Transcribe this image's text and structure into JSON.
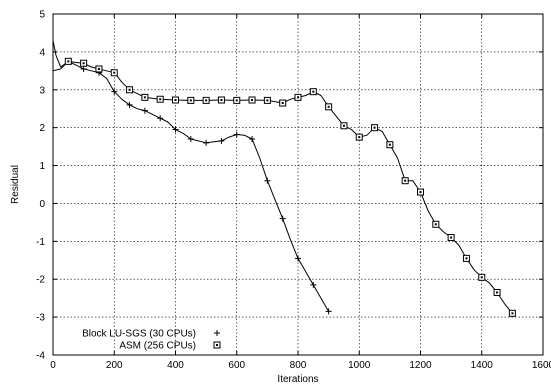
{
  "chart_data": {
    "type": "line",
    "title": "",
    "xlabel": "Iterations",
    "ylabel": "Residual",
    "xlim": [
      0,
      1600
    ],
    "ylim": [
      -4,
      5
    ],
    "xticks": [
      "0",
      "200",
      "400",
      "600",
      "800",
      "1000",
      "1200",
      "1400",
      "1600"
    ],
    "yticks": [
      "-4",
      "-3",
      "-2",
      "-1",
      "0",
      "1",
      "2",
      "3",
      "4",
      "5"
    ],
    "grid": true,
    "legend_position": "bottom-left",
    "series": [
      {
        "name": "Block LU-SGS (30 CPUs)",
        "marker": "plus",
        "line": [
          [
            0,
            4.3
          ],
          [
            10,
            3.9
          ],
          [
            25,
            3.6
          ],
          [
            50,
            3.75
          ],
          [
            75,
            3.65
          ],
          [
            100,
            3.55
          ],
          [
            125,
            3.5
          ],
          [
            150,
            3.45
          ],
          [
            175,
            3.3
          ],
          [
            200,
            2.95
          ],
          [
            225,
            2.75
          ],
          [
            250,
            2.6
          ],
          [
            275,
            2.5
          ],
          [
            300,
            2.45
          ],
          [
            325,
            2.35
          ],
          [
            350,
            2.25
          ],
          [
            375,
            2.15
          ],
          [
            400,
            1.95
          ],
          [
            425,
            1.85
          ],
          [
            450,
            1.7
          ],
          [
            500,
            1.6
          ],
          [
            550,
            1.65
          ],
          [
            575,
            1.75
          ],
          [
            600,
            1.82
          ],
          [
            625,
            1.8
          ],
          [
            650,
            1.7
          ],
          [
            675,
            1.2
          ],
          [
            700,
            0.6
          ],
          [
            725,
            0.1
          ],
          [
            750,
            -0.4
          ],
          [
            775,
            -0.95
          ],
          [
            800,
            -1.45
          ],
          [
            825,
            -1.8
          ],
          [
            850,
            -2.15
          ],
          [
            875,
            -2.5
          ],
          [
            900,
            -2.85
          ]
        ],
        "markers": [
          [
            50,
            3.75
          ],
          [
            100,
            3.55
          ],
          [
            150,
            3.45
          ],
          [
            200,
            2.95
          ],
          [
            250,
            2.6
          ],
          [
            300,
            2.45
          ],
          [
            350,
            2.25
          ],
          [
            400,
            1.95
          ],
          [
            450,
            1.7
          ],
          [
            500,
            1.6
          ],
          [
            550,
            1.65
          ],
          [
            600,
            1.82
          ],
          [
            650,
            1.7
          ],
          [
            700,
            0.6
          ],
          [
            750,
            -0.4
          ],
          [
            800,
            -1.45
          ],
          [
            850,
            -2.15
          ],
          [
            900,
            -2.85
          ]
        ]
      },
      {
        "name": "ASM (256 CPUs)",
        "marker": "square",
        "line": [
          [
            0,
            3.5
          ],
          [
            25,
            3.55
          ],
          [
            50,
            3.75
          ],
          [
            75,
            3.72
          ],
          [
            100,
            3.7
          ],
          [
            125,
            3.6
          ],
          [
            150,
            3.55
          ],
          [
            175,
            3.5
          ],
          [
            200,
            3.45
          ],
          [
            225,
            3.2
          ],
          [
            250,
            3.0
          ],
          [
            275,
            2.9
          ],
          [
            300,
            2.8
          ],
          [
            350,
            2.75
          ],
          [
            400,
            2.73
          ],
          [
            450,
            2.72
          ],
          [
            500,
            2.72
          ],
          [
            550,
            2.73
          ],
          [
            600,
            2.72
          ],
          [
            650,
            2.73
          ],
          [
            700,
            2.72
          ],
          [
            750,
            2.65
          ],
          [
            775,
            2.75
          ],
          [
            800,
            2.8
          ],
          [
            825,
            2.85
          ],
          [
            850,
            2.95
          ],
          [
            875,
            2.85
          ],
          [
            900,
            2.55
          ],
          [
            925,
            2.3
          ],
          [
            950,
            2.05
          ],
          [
            975,
            1.95
          ],
          [
            1000,
            1.75
          ],
          [
            1025,
            1.8
          ],
          [
            1050,
            2.0
          ],
          [
            1075,
            1.9
          ],
          [
            1100,
            1.55
          ],
          [
            1125,
            1.2
          ],
          [
            1150,
            0.6
          ],
          [
            1175,
            0.6
          ],
          [
            1200,
            0.3
          ],
          [
            1225,
            -0.2
          ],
          [
            1250,
            -0.55
          ],
          [
            1275,
            -0.75
          ],
          [
            1300,
            -0.9
          ],
          [
            1325,
            -1.1
          ],
          [
            1350,
            -1.45
          ],
          [
            1375,
            -1.75
          ],
          [
            1400,
            -1.95
          ],
          [
            1425,
            -2.1
          ],
          [
            1450,
            -2.35
          ],
          [
            1475,
            -2.65
          ],
          [
            1500,
            -2.9
          ]
        ],
        "markers": [
          [
            50,
            3.75
          ],
          [
            100,
            3.7
          ],
          [
            150,
            3.55
          ],
          [
            200,
            3.45
          ],
          [
            250,
            3.0
          ],
          [
            300,
            2.8
          ],
          [
            350,
            2.75
          ],
          [
            400,
            2.73
          ],
          [
            450,
            2.72
          ],
          [
            500,
            2.72
          ],
          [
            550,
            2.73
          ],
          [
            600,
            2.72
          ],
          [
            650,
            2.73
          ],
          [
            700,
            2.72
          ],
          [
            750,
            2.65
          ],
          [
            800,
            2.8
          ],
          [
            850,
            2.95
          ],
          [
            900,
            2.55
          ],
          [
            950,
            2.05
          ],
          [
            1000,
            1.75
          ],
          [
            1050,
            2.0
          ],
          [
            1100,
            1.55
          ],
          [
            1150,
            0.6
          ],
          [
            1200,
            0.3
          ],
          [
            1250,
            -0.55
          ],
          [
            1300,
            -0.9
          ],
          [
            1350,
            -1.45
          ],
          [
            1400,
            -1.95
          ],
          [
            1450,
            -2.35
          ],
          [
            1500,
            -2.9
          ]
        ]
      }
    ]
  }
}
